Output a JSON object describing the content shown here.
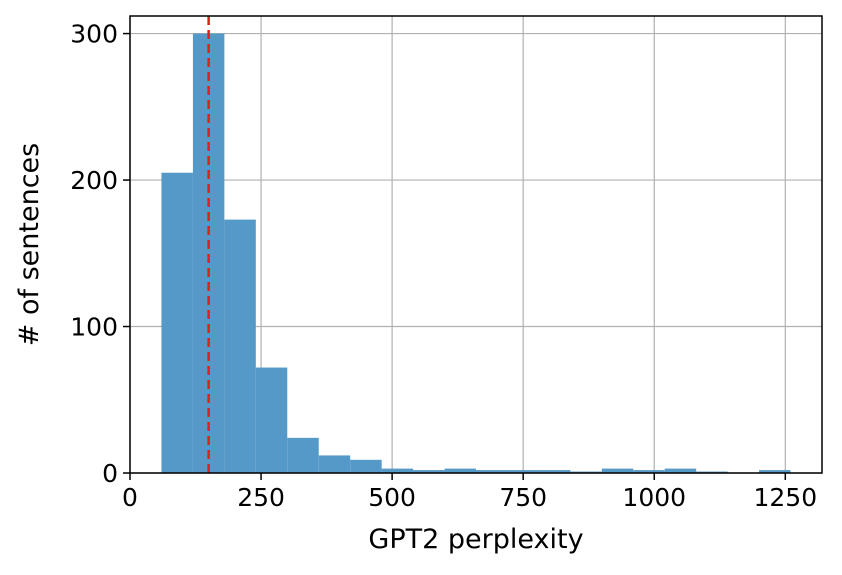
{
  "chart_data": {
    "type": "bar",
    "title": "",
    "xlabel": "GPT2 perplexity",
    "ylabel": "# of sentences",
    "xlim": [
      0,
      1320
    ],
    "ylim": [
      0,
      312
    ],
    "xticks": [
      0,
      250,
      500,
      750,
      1000,
      1250
    ],
    "xtick_labels": [
      "0",
      "250",
      "500",
      "750",
      "1000",
      "1250"
    ],
    "yticks": [
      0,
      100,
      200,
      300
    ],
    "ytick_labels": [
      "0",
      "100",
      "200",
      "300"
    ],
    "grid": true,
    "bin_edges": [
      60,
      120,
      180,
      240,
      300,
      360,
      420,
      480,
      540,
      600,
      660,
      720,
      780,
      840,
      900,
      960,
      1020,
      1080,
      1140,
      1200,
      1260
    ],
    "values": [
      205,
      300,
      173,
      72,
      24,
      12,
      9,
      3,
      2,
      3,
      2,
      2,
      2,
      1,
      3,
      2,
      3,
      1,
      0,
      2
    ],
    "bar_color": "#5499c7",
    "reference_line": {
      "x": 150,
      "style": "dashed",
      "color": "#e0211b"
    }
  }
}
